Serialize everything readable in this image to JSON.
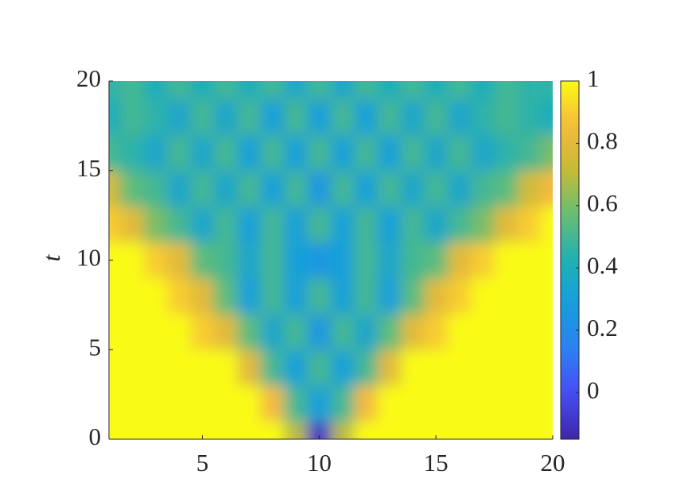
{
  "chart_data": {
    "type": "heatmap",
    "ylabel": "t",
    "x": [
      1,
      2,
      3,
      4,
      5,
      6,
      7,
      8,
      9,
      10,
      11,
      12,
      13,
      14,
      15,
      16,
      17,
      18,
      19,
      20
    ],
    "y": [
      0,
      2,
      4,
      6,
      8,
      10,
      12,
      14,
      16,
      18,
      20
    ],
    "z": [
      [
        1,
        1,
        1,
        1,
        1,
        1,
        1,
        1,
        0.7,
        -0.1,
        0.7,
        1,
        1,
        1,
        1,
        1,
        1,
        1,
        1,
        1
      ],
      [
        1,
        1,
        1,
        1,
        1,
        1,
        1,
        0.85,
        0.5,
        0.3,
        0.5,
        0.85,
        1,
        1,
        1,
        1,
        1,
        1,
        1,
        1
      ],
      [
        1,
        1,
        1,
        1,
        1,
        1,
        0.8,
        0.5,
        0.3,
        0.5,
        0.3,
        0.5,
        0.8,
        1,
        1,
        1,
        1,
        1,
        1,
        1
      ],
      [
        1,
        1,
        1,
        1,
        0.9,
        0.8,
        0.55,
        0.35,
        0.5,
        0.25,
        0.5,
        0.35,
        0.55,
        0.8,
        0.9,
        1,
        1,
        1,
        1,
        1
      ],
      [
        1,
        1,
        1,
        0.9,
        0.8,
        0.55,
        0.3,
        0.5,
        0.3,
        0.5,
        0.3,
        0.5,
        0.3,
        0.55,
        0.8,
        0.9,
        1,
        1,
        1,
        1
      ],
      [
        1,
        1,
        0.9,
        0.8,
        0.55,
        0.5,
        0.35,
        0.5,
        0.3,
        0.25,
        0.3,
        0.5,
        0.35,
        0.5,
        0.55,
        0.8,
        0.9,
        1,
        1,
        1
      ],
      [
        0.9,
        0.8,
        0.6,
        0.5,
        0.35,
        0.5,
        0.3,
        0.5,
        0.3,
        0.5,
        0.3,
        0.5,
        0.3,
        0.5,
        0.35,
        0.5,
        0.6,
        0.8,
        0.9,
        1
      ],
      [
        0.75,
        0.55,
        0.5,
        0.35,
        0.5,
        0.35,
        0.5,
        0.3,
        0.5,
        0.25,
        0.5,
        0.3,
        0.5,
        0.35,
        0.5,
        0.35,
        0.5,
        0.55,
        0.75,
        0.85
      ],
      [
        0.5,
        0.45,
        0.35,
        0.5,
        0.35,
        0.5,
        0.3,
        0.5,
        0.3,
        0.5,
        0.3,
        0.5,
        0.3,
        0.5,
        0.35,
        0.5,
        0.35,
        0.45,
        0.5,
        0.6
      ],
      [
        0.4,
        0.5,
        0.45,
        0.35,
        0.5,
        0.35,
        0.5,
        0.3,
        0.5,
        0.3,
        0.5,
        0.3,
        0.5,
        0.35,
        0.5,
        0.35,
        0.45,
        0.5,
        0.45,
        0.4
      ],
      [
        0.45,
        0.5,
        0.4,
        0.5,
        0.4,
        0.5,
        0.4,
        0.5,
        0.35,
        0.5,
        0.35,
        0.5,
        0.4,
        0.5,
        0.4,
        0.5,
        0.4,
        0.5,
        0.45,
        0.45
      ]
    ],
    "xlim": [
      1,
      20
    ],
    "xticks": [
      5,
      10,
      15,
      20
    ],
    "ylim": [
      0,
      20
    ],
    "yticks": [
      0,
      5,
      10,
      15,
      20
    ],
    "clim": [
      -0.15,
      1
    ],
    "cticks": [
      0,
      0.2,
      0.4,
      0.6,
      0.8,
      1
    ],
    "colormap": "parula"
  }
}
